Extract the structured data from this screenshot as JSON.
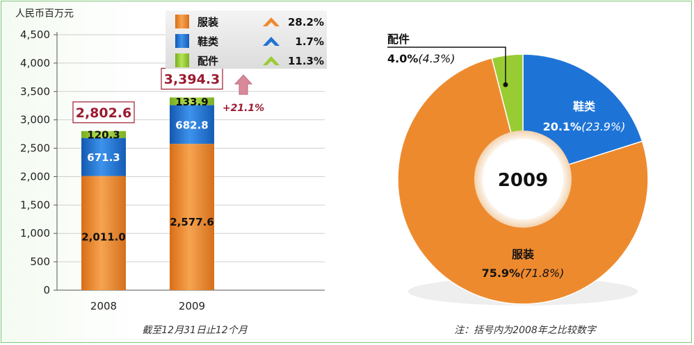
{
  "colors": {
    "apparel": "#ee8a2e",
    "footwear": "#1e74d6",
    "accessories": "#99cc33",
    "total_label": "#9b1b30",
    "growth_arrow": "#c0506a"
  },
  "chart_data": [
    {
      "type": "bar",
      "stacked": true,
      "ylabel": "人民币百万元",
      "xlabel": "截至12月31日止12个月",
      "ylim": [
        0,
        4500
      ],
      "yticks": [
        "0",
        "500",
        "1,000",
        "1,500",
        "2,000",
        "2,500",
        "3,000",
        "3,500",
        "4,000",
        "4,500"
      ],
      "grid": true,
      "categories": [
        "2008",
        "2009"
      ],
      "series": [
        {
          "name": "服装",
          "values": [
            2011.0,
            2577.6
          ],
          "labels": [
            "2,011.0",
            "2,577.6"
          ],
          "growth": "28.2%"
        },
        {
          "name": "鞋类",
          "values": [
            671.3,
            682.8
          ],
          "labels": [
            "671.3",
            "682.8"
          ],
          "growth": "1.7%"
        },
        {
          "name": "配件",
          "values": [
            120.3,
            133.9
          ],
          "labels": [
            "120.3",
            "133.9"
          ],
          "growth": "11.3%"
        }
      ],
      "totals": [
        "2,802.6",
        "3,394.3"
      ],
      "total_growth": "+21.1%",
      "legend_position": "top"
    },
    {
      "type": "pie",
      "donut": true,
      "center_label": "2009",
      "note": "注：括号内为2008年之比较数字",
      "slices": [
        {
          "name": "鞋类",
          "value": 20.1,
          "label": "20.1%",
          "prior": "(23.9%)"
        },
        {
          "name": "服装",
          "value": 75.9,
          "label": "75.9%",
          "prior": "(71.8%)"
        },
        {
          "name": "配件",
          "value": 4.0,
          "label": "4.0%",
          "prior": "(4.3%)"
        }
      ]
    }
  ]
}
